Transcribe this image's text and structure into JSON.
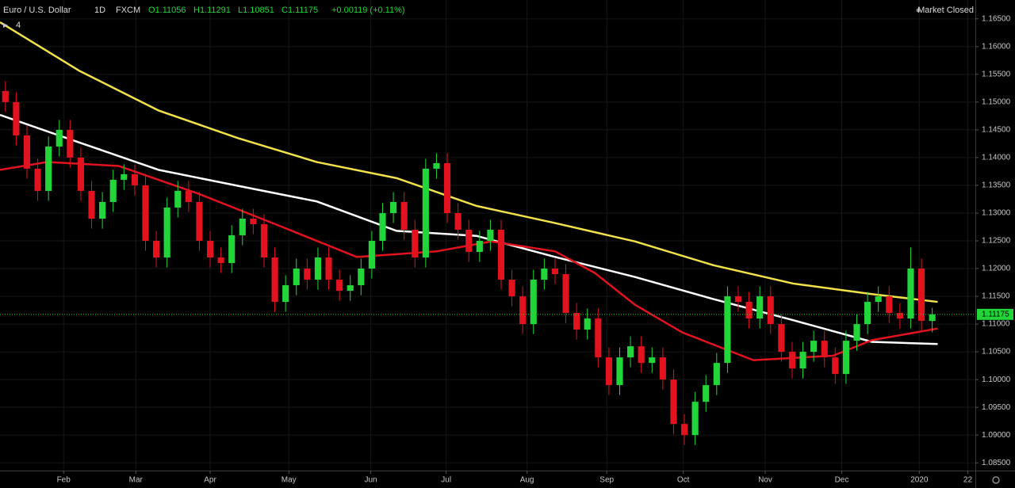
{
  "chart_data": {
    "type": "candlestick",
    "header": {
      "symbol": "Euro / U.S. Dollar",
      "interval": "1D",
      "source": "FXCM",
      "open": "O1.11056",
      "high": "H1.11291",
      "low": "L1.10851",
      "close": "C1.11175",
      "change": "+0.00119 (+0.11%)"
    },
    "status": "Market Closed",
    "indicator_count": "4",
    "up_color": "#22d63a",
    "down_color": "#e3121f",
    "grid": true,
    "xlim": [
      0,
      90.5
    ],
    "ylim": [
      1.0836,
      1.1684
    ],
    "xticks": [
      {
        "value": 5.9,
        "label": "Feb"
      },
      {
        "value": 12.6,
        "label": "Mar"
      },
      {
        "value": 19.5,
        "label": "Apr"
      },
      {
        "value": 26.8,
        "label": "May"
      },
      {
        "value": 34.4,
        "label": "Jun"
      },
      {
        "value": 41.4,
        "label": "Jul"
      },
      {
        "value": 48.9,
        "label": "Aug"
      },
      {
        "value": 56.3,
        "label": "Sep"
      },
      {
        "value": 63.4,
        "label": "Oct"
      },
      {
        "value": 71.0,
        "label": "Nov"
      },
      {
        "value": 78.1,
        "label": "Dec"
      },
      {
        "value": 85.3,
        "label": "2020"
      },
      {
        "value": 89.8,
        "label": "22"
      }
    ],
    "yticks": [
      {
        "value": 1.085,
        "label": "1.08500"
      },
      {
        "value": 1.09,
        "label": "1.09000"
      },
      {
        "value": 1.095,
        "label": "1.09500"
      },
      {
        "value": 1.1,
        "label": "1.10000"
      },
      {
        "value": 1.105,
        "label": "1.10500"
      },
      {
        "value": 1.11,
        "label": "1.11000"
      },
      {
        "value": 1.115,
        "label": "1.11500"
      },
      {
        "value": 1.12,
        "label": "1.12000"
      },
      {
        "value": 1.125,
        "label": "1.12500"
      },
      {
        "value": 1.13,
        "label": "1.13000"
      },
      {
        "value": 1.135,
        "label": "1.13500"
      },
      {
        "value": 1.14,
        "label": "1.14000"
      },
      {
        "value": 1.145,
        "label": "1.14500"
      },
      {
        "value": 1.15,
        "label": "1.15000"
      },
      {
        "value": 1.155,
        "label": "1.15500"
      },
      {
        "value": 1.16,
        "label": "1.16000"
      },
      {
        "value": 1.165,
        "label": "1.16500"
      }
    ],
    "last_price": {
      "value": 1.11175,
      "label": "1.11175",
      "color": "#22d63a"
    },
    "open": [
      1.152,
      1.15,
      1.144,
      1.138,
      1.134,
      1.142,
      1.145,
      1.14,
      1.134,
      1.129,
      1.132,
      1.136,
      1.137,
      1.135,
      1.125,
      1.122,
      1.131,
      1.134,
      1.132,
      1.125,
      1.122,
      1.121,
      1.126,
      1.129,
      1.128,
      1.122,
      1.114,
      1.117,
      1.12,
      1.118,
      1.122,
      1.118,
      1.116,
      1.117,
      1.12,
      1.125,
      1.13,
      1.132,
      1.127,
      1.122,
      1.138,
      1.139,
      1.13,
      1.127,
      1.123,
      1.125,
      1.127,
      1.118,
      1.115,
      1.11,
      1.118,
      1.12,
      1.119,
      1.112,
      1.109,
      1.111,
      1.104,
      1.099,
      1.104,
      1.106,
      1.103,
      1.104,
      1.1,
      1.092,
      1.09,
      1.096,
      1.099,
      1.103,
      1.115,
      1.114,
      1.111,
      1.115,
      1.11,
      1.105,
      1.102,
      1.105,
      1.107,
      1.104,
      1.101,
      1.107,
      1.11,
      1.114,
      1.115,
      1.112,
      1.111,
      1.12,
      1.11056
    ],
    "high": [
      1.1538,
      1.1518,
      1.1458,
      1.1398,
      1.1438,
      1.1468,
      1.1468,
      1.1418,
      1.1358,
      1.1338,
      1.1378,
      1.1388,
      1.1388,
      1.1368,
      1.1268,
      1.1328,
      1.1358,
      1.1358,
      1.1338,
      1.1268,
      1.1238,
      1.1278,
      1.1308,
      1.1308,
      1.1298,
      1.1238,
      1.1188,
      1.1218,
      1.1218,
      1.1238,
      1.1238,
      1.1198,
      1.1188,
      1.1218,
      1.1268,
      1.1318,
      1.1338,
      1.1338,
      1.1288,
      1.1398,
      1.1408,
      1.1408,
      1.1318,
      1.1288,
      1.1268,
      1.1288,
      1.1288,
      1.1198,
      1.1168,
      1.1198,
      1.1218,
      1.1218,
      1.1208,
      1.1138,
      1.1128,
      1.1128,
      1.1058,
      1.1058,
      1.1078,
      1.1078,
      1.1058,
      1.1058,
      1.1018,
      1.0938,
      1.0978,
      1.1008,
      1.1048,
      1.1168,
      1.1168,
      1.1158,
      1.1168,
      1.1168,
      1.1118,
      1.1068,
      1.1068,
      1.1088,
      1.1088,
      1.1058,
      1.1088,
      1.1118,
      1.1158,
      1.1168,
      1.1168,
      1.1138,
      1.1238,
      1.1218,
      1.11291
    ],
    "low": [
      1.1482,
      1.1422,
      1.1362,
      1.1322,
      1.1322,
      1.1402,
      1.1382,
      1.1322,
      1.1272,
      1.1272,
      1.1302,
      1.1342,
      1.1332,
      1.1232,
      1.1202,
      1.1202,
      1.1292,
      1.1302,
      1.1232,
      1.1202,
      1.1192,
      1.1192,
      1.1242,
      1.1262,
      1.1202,
      1.1122,
      1.1122,
      1.1152,
      1.1162,
      1.1162,
      1.1162,
      1.1142,
      1.1142,
      1.1152,
      1.1182,
      1.1232,
      1.1282,
      1.1252,
      1.1202,
      1.1202,
      1.1362,
      1.1282,
      1.1252,
      1.1212,
      1.1212,
      1.1232,
      1.1162,
      1.1132,
      1.1082,
      1.1082,
      1.1162,
      1.1172,
      1.1102,
      1.1072,
      1.1072,
      1.1022,
      1.0972,
      1.0972,
      1.1022,
      1.1012,
      1.1012,
      1.0982,
      1.0902,
      1.0882,
      1.0882,
      1.0942,
      1.0972,
      1.1012,
      1.1122,
      1.1092,
      1.1092,
      1.1082,
      1.1032,
      1.1002,
      1.1002,
      1.1032,
      1.1022,
      1.0992,
      1.0992,
      1.1052,
      1.1082,
      1.1122,
      1.1102,
      1.1092,
      1.1092,
      1.1088,
      1.10851
    ],
    "close": [
      1.15,
      1.144,
      1.138,
      1.134,
      1.142,
      1.145,
      1.14,
      1.134,
      1.129,
      1.132,
      1.136,
      1.137,
      1.135,
      1.125,
      1.122,
      1.131,
      1.134,
      1.132,
      1.125,
      1.122,
      1.121,
      1.126,
      1.129,
      1.128,
      1.122,
      1.114,
      1.117,
      1.12,
      1.118,
      1.122,
      1.118,
      1.116,
      1.117,
      1.12,
      1.125,
      1.13,
      1.132,
      1.127,
      1.122,
      1.138,
      1.139,
      1.13,
      1.127,
      1.123,
      1.125,
      1.127,
      1.118,
      1.115,
      1.11,
      1.118,
      1.12,
      1.119,
      1.112,
      1.109,
      1.111,
      1.104,
      1.099,
      1.104,
      1.106,
      1.103,
      1.104,
      1.1,
      1.092,
      1.09,
      1.096,
      1.099,
      1.103,
      1.115,
      1.114,
      1.111,
      1.115,
      1.11,
      1.105,
      1.102,
      1.105,
      1.107,
      1.104,
      1.101,
      1.107,
      1.11,
      1.114,
      1.115,
      1.112,
      1.111,
      1.12,
      1.1106,
      1.11175
    ],
    "series": [
      {
        "color": "#f2e24a",
        "x": [
          0,
          7.4,
          14.7,
          22.1,
          29.4,
          36.8,
          44.2,
          51.5,
          58.9,
          66.2,
          73.6,
          80.9,
          87.0
        ],
        "values": [
          1.1644,
          1.1556,
          1.1485,
          1.1435,
          1.1392,
          1.1363,
          1.1313,
          1.1282,
          1.1249,
          1.1206,
          1.1173,
          1.1154,
          1.114
        ]
      },
      {
        "color": "#ffffff",
        "x": [
          0,
          7.4,
          14.7,
          22.1,
          29.4,
          36.8,
          44.2,
          51.5,
          58.9,
          66.2,
          73.6,
          80.9,
          87.0
        ],
        "values": [
          1.1477,
          1.1427,
          1.1378,
          1.1349,
          1.1321,
          1.1268,
          1.1259,
          1.1221,
          1.1185,
          1.1145,
          1.1107,
          1.1068,
          1.1064
        ]
      },
      {
        "color": "#e3121f",
        "x": [
          0,
          4.4,
          11.0,
          18.4,
          25.8,
          33.1,
          40.5,
          45.6,
          51.5,
          55.2,
          58.9,
          63.3,
          69.9,
          77.3,
          80.9,
          87.0
        ],
        "values": [
          1.1378,
          1.1392,
          1.1385,
          1.1335,
          1.1278,
          1.1221,
          1.1231,
          1.1249,
          1.1231,
          1.1192,
          1.1135,
          1.1085,
          1.1035,
          1.1043,
          1.1071,
          1.1092
        ]
      }
    ]
  }
}
